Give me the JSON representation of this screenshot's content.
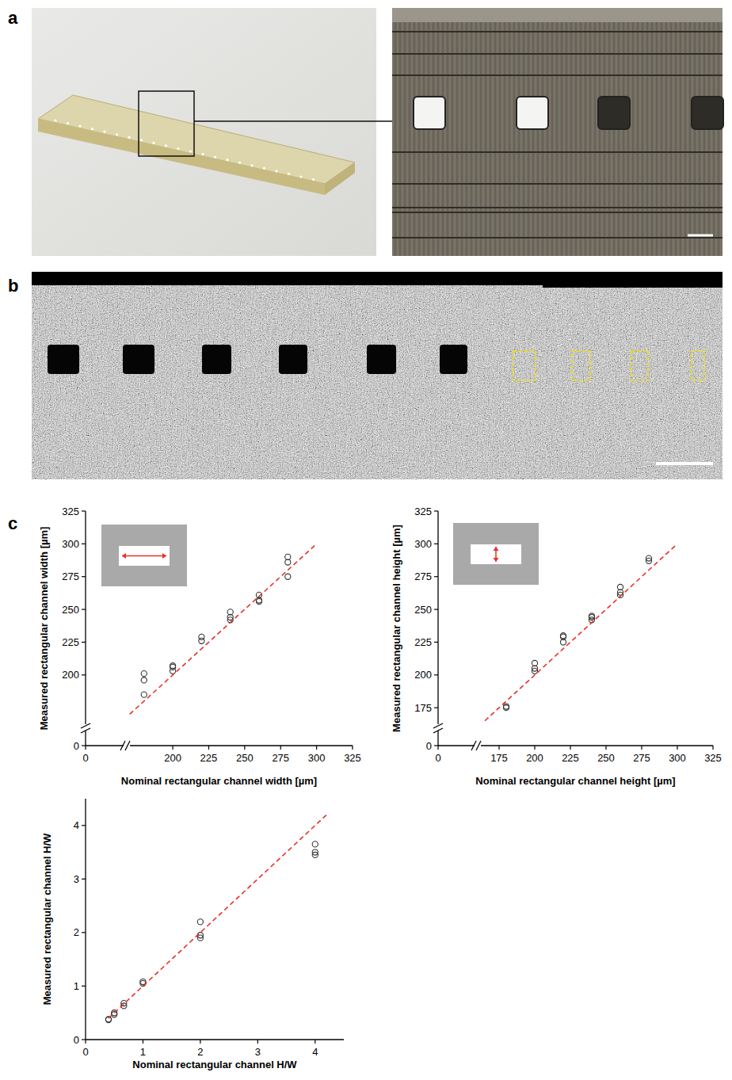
{
  "panel_labels": [
    "a",
    "b",
    "c"
  ],
  "chart_data": [
    {
      "type": "scatter",
      "xlabel": "Nominal rectangular channel width [µm]",
      "ylabel": "Measured rectangular channel width [µm]",
      "xlim": [
        0,
        325
      ],
      "ylim": [
        0,
        325
      ],
      "xbreak": [
        28,
        168
      ],
      "ybreak": [
        12,
        160
      ],
      "xticks": [
        0,
        200,
        225,
        250,
        275,
        300,
        325
      ],
      "yticks": [
        0,
        200,
        225,
        250,
        275,
        300,
        325
      ],
      "grid": false,
      "series": [
        {
          "type": "scatter",
          "marker": "circle",
          "color": "#333333",
          "x": [
            180,
            180,
            180,
            200,
            200,
            200,
            220,
            220,
            240,
            240,
            240,
            260,
            260,
            260,
            280,
            280,
            280
          ],
          "values": [
            201,
            196,
            185,
            207,
            206,
            203,
            229,
            226,
            248,
            244,
            242,
            261,
            257,
            256,
            290,
            286,
            275
          ]
        },
        {
          "type": "line",
          "line_style": "dashed",
          "color": "#e8312a",
          "x": [
            170,
            300
          ],
          "values": [
            170,
            300
          ]
        }
      ]
    },
    {
      "type": "scatter",
      "xlabel": "Nominal rectangular channel height [µm]",
      "ylabel": "Measured rectangular channel height [µm]",
      "xlim": [
        0,
        325
      ],
      "ylim": [
        0,
        325
      ],
      "xbreak": [
        27,
        160
      ],
      "ybreak": [
        12,
        160
      ],
      "xticks": [
        0,
        175,
        200,
        225,
        250,
        275,
        300,
        325
      ],
      "yticks": [
        0,
        175,
        200,
        225,
        250,
        275,
        300,
        325
      ],
      "grid": false,
      "series": [
        {
          "type": "scatter",
          "marker": "circle",
          "color": "#333333",
          "x": [
            180,
            180,
            200,
            200,
            200,
            220,
            220,
            220,
            240,
            240,
            240,
            260,
            260,
            260,
            280,
            280
          ],
          "values": [
            176,
            175,
            209,
            205,
            203,
            230,
            229,
            225,
            245,
            244,
            242,
            267,
            263,
            261,
            289,
            287
          ]
        },
        {
          "type": "line",
          "line_style": "dashed",
          "color": "#e8312a",
          "x": [
            165,
            300
          ],
          "values": [
            165,
            300
          ]
        }
      ]
    },
    {
      "type": "scatter",
      "xlabel": "Nominal rectangular channel H/W",
      "ylabel": "Measured rectangular channel H/W",
      "xlim": [
        0,
        4.5
      ],
      "ylim": [
        0,
        4.5
      ],
      "xticks": [
        0,
        1,
        2,
        3,
        4
      ],
      "yticks": [
        0,
        1,
        2,
        3,
        4
      ],
      "grid": false,
      "series": [
        {
          "type": "scatter",
          "marker": "circle",
          "color": "#333333",
          "x": [
            0.4,
            0.4,
            0.5,
            0.5,
            0.667,
            0.667,
            1,
            1,
            2,
            2,
            2,
            4,
            4,
            4
          ],
          "values": [
            0.37,
            0.38,
            0.5,
            0.47,
            0.68,
            0.63,
            1.08,
            1.05,
            2.2,
            1.95,
            1.9,
            3.65,
            3.5,
            3.45
          ]
        },
        {
          "type": "line",
          "line_style": "dashed",
          "color": "#e8312a",
          "x": [
            0.4,
            4.2
          ],
          "values": [
            0.4,
            4.2
          ]
        }
      ]
    }
  ]
}
